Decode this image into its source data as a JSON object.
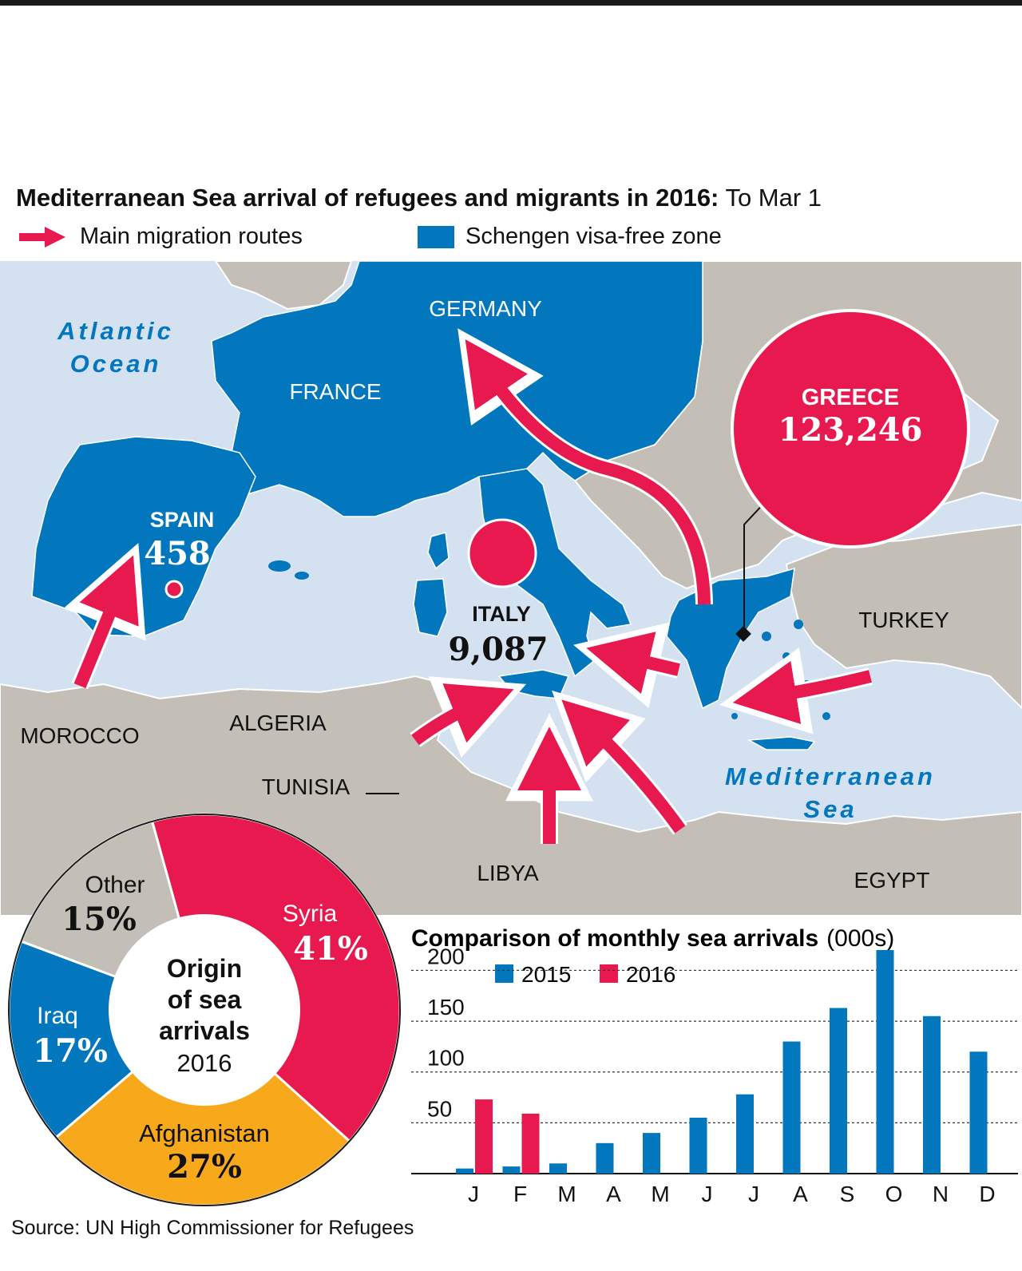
{
  "header": {
    "title_bold": "Mediterranean Sea arrival of refugees and migrants in 2016:",
    "title_rest": " To Mar 1"
  },
  "legend": {
    "routes_label": "Main migration routes",
    "schengen_label": "Schengen visa-free zone",
    "route_color": "#e8194e",
    "schengen_color": "#0277bd"
  },
  "map": {
    "labels": {
      "atlantic_line1": "Atlantic",
      "atlantic_line2": "Ocean",
      "germany": "GERMANY",
      "france": "FRANCE",
      "turkey": "TURKEY",
      "morocco": "MOROCCO",
      "algeria": "ALGERIA",
      "tunisia": "TUNISIA",
      "libya": "LIBYA",
      "egypt": "EGYPT",
      "med_line1": "Mediterranean",
      "med_line2": "Sea"
    },
    "arrivals": [
      {
        "country": "SPAIN",
        "value": "458"
      },
      {
        "country": "ITALY",
        "value": "9,087"
      },
      {
        "country": "GREECE",
        "value": "123,246"
      }
    ],
    "colors": {
      "sea": "#d4e1f1",
      "land": "#c3bfb6",
      "schengen": "#0277bd",
      "route": "#e8194e"
    }
  },
  "pie": {
    "center_line1": "Origin",
    "center_line2": "of sea",
    "center_line3": "arrivals",
    "center_year": "2016",
    "segments": [
      {
        "name": "Syria",
        "pct": 41,
        "label": "41%",
        "color": "#e8194e"
      },
      {
        "name": "Afghanistan",
        "pct": 27,
        "label": "27%",
        "color": "#f7a81b"
      },
      {
        "name": "Iraq",
        "pct": 17,
        "label": "17%",
        "color": "#0277bd"
      },
      {
        "name": "Other",
        "pct": 15,
        "label": "15%",
        "color": "#c3bfb6"
      }
    ]
  },
  "chart_data": {
    "type": "bar",
    "title": "Comparison of monthly sea arrivals",
    "title_unit": "(000s)",
    "categories": [
      "J",
      "F",
      "M",
      "A",
      "M",
      "J",
      "J",
      "A",
      "S",
      "O",
      "N",
      "D"
    ],
    "series": [
      {
        "name": "2015",
        "color": "#0277bd",
        "values": [
          5,
          7,
          10,
          30,
          40,
          55,
          78,
          130,
          163,
          220,
          155,
          120
        ]
      },
      {
        "name": "2016",
        "color": "#e8194e",
        "values": [
          73,
          59,
          null,
          null,
          null,
          null,
          null,
          null,
          null,
          null,
          null,
          null
        ]
      }
    ],
    "yticks": [
      50,
      100,
      150,
      200
    ],
    "ylim": [
      0,
      220
    ],
    "grid": true,
    "legend_position": "top"
  },
  "source": "Source: UN High Commissioner for Refugees"
}
